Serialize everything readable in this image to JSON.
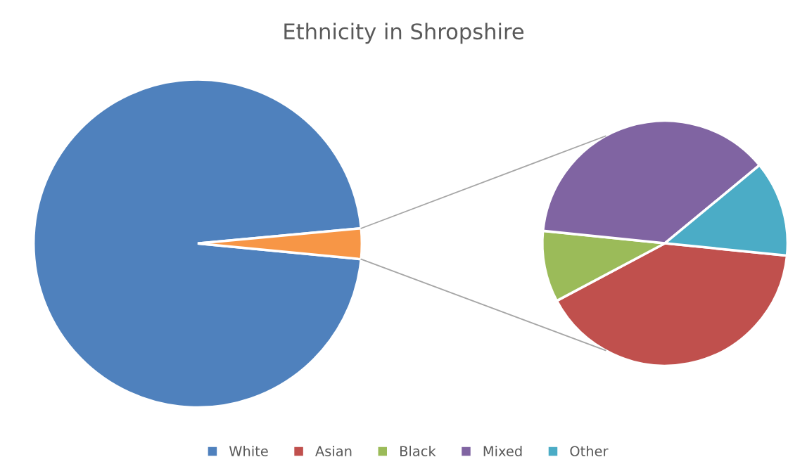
{
  "chart_data": [
    {
      "type": "pie",
      "title": "Ethnicity in Shropshire",
      "categories": [
        "White",
        null
      ],
      "values": [
        97,
        3
      ],
      "colors": [
        "#4f81bd",
        "#f79646"
      ],
      "legend": "bottom"
    },
    {
      "type": "pie",
      "categories": [
        "Asian",
        "Black",
        "Mixed",
        "Other"
      ],
      "values": [
        40.6,
        9.4,
        37.4,
        12.6
      ],
      "colors": [
        "#c0504d",
        "#9bbb59",
        "#8064a2",
        "#4bacc6"
      ],
      "legend": "bottom"
    }
  ]
}
